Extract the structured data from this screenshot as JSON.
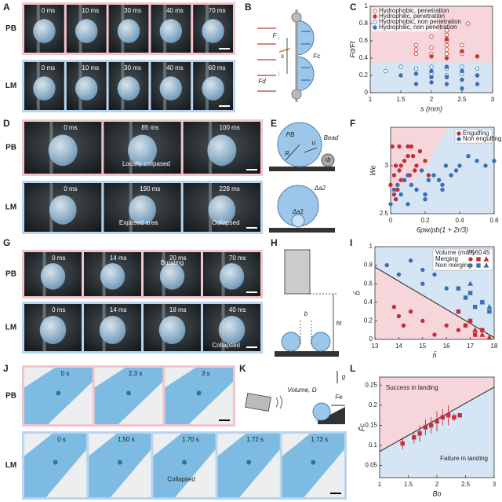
{
  "figure": {
    "panel_labels": [
      "A",
      "B",
      "C",
      "D",
      "E",
      "F",
      "G",
      "H",
      "I",
      "J",
      "K",
      "L"
    ],
    "photo_rows": [
      {
        "name": "PB",
        "frames": [
          "0 ms",
          "10 ms",
          "30  ms",
          "40 ms",
          "70 ms"
        ],
        "notes": []
      },
      {
        "name": "LM",
        "frames": [
          "0 ms",
          "10 ms",
          "30 ms",
          "40 ms",
          "60 ms"
        ],
        "notes": []
      },
      {
        "name": "PB",
        "frames": [
          "0 ms",
          "85 ms",
          "100 ms"
        ],
        "notes": [
          "Locally collpased"
        ]
      },
      {
        "name": "LM",
        "frames": [
          "0 ms",
          "190 ms",
          "228 ms"
        ],
        "notes": [
          "Exposed area",
          "Collapsed"
        ]
      },
      {
        "name": "PB",
        "frames": [
          "0 ms",
          "14 ms",
          "20 ms",
          "70 ms"
        ],
        "notes": [
          "Bursting"
        ]
      },
      {
        "name": "LM",
        "frames": [
          "0 ms",
          "14 ms",
          "18 ms",
          "40 ms"
        ],
        "notes": [
          "Collapsed"
        ]
      },
      {
        "name": "PB",
        "frames": [
          "0 s",
          "2.3 s",
          "3 s"
        ],
        "notes": []
      },
      {
        "name": "LM",
        "frames": [
          "0 s",
          "1.50 s",
          "1.70 s",
          "1.72 s",
          "1.73 s"
        ],
        "notes": [
          "Collapsed"
        ]
      }
    ],
    "diagrams": {
      "B": [
        "F",
        "Fd",
        "Fc",
        "s"
      ],
      "E": [
        "PB",
        "u",
        "R",
        "rb",
        "Bead",
        "Δa2",
        "Δa1"
      ],
      "H": [
        "b",
        "ht"
      ],
      "K": [
        "Volume, Ω",
        "g",
        "Fe"
      ]
    }
  },
  "chart_data": [
    {
      "type": "scatter",
      "x_label": "s (mm)",
      "y_label": "Fd/Ft",
      "xlim": [
        1,
        3
      ],
      "xticks": [
        1,
        1.5,
        2,
        2.5,
        3
      ],
      "ylim": [
        0,
        1
      ],
      "yticks": [
        0,
        0.2,
        0.4,
        0.6,
        0.8,
        1
      ],
      "region_colors": [
        "#f6d6da",
        "#d5e5f4"
      ],
      "series": [
        {
          "name": "Hydrophobic, penetration",
          "color": "#c0392b",
          "filled": false,
          "marker": "circle",
          "x": [
            1.75,
            1.75,
            1.75,
            2,
            2,
            2,
            2,
            2.25,
            2.25,
            2.25,
            2.25,
            2.25,
            2.25,
            2.5,
            2.5,
            2.6
          ],
          "values": [
            0.55,
            0.5,
            0.45,
            0.78,
            0.65,
            0.52,
            0.45,
            0.72,
            0.67,
            0.6,
            0.55,
            0.5,
            0.45,
            0.55,
            0.45,
            0.8
          ]
        },
        {
          "name": "Hydrophilic, penetration",
          "color": "#c0392b",
          "filled": true,
          "marker": "circle",
          "x": [
            2,
            2.25,
            2.25,
            2.5,
            2.75
          ],
          "values": [
            0.42,
            0.62,
            0.4,
            0.48,
            0.42
          ]
        },
        {
          "name": "Hydrophobic, non penetration",
          "color": "#3a6fb5",
          "filled": false,
          "marker": "circle",
          "x": [
            1.25,
            1.5,
            1.75,
            2,
            2,
            2.25,
            2.25,
            2.5,
            2.5,
            2.75,
            2.75
          ],
          "values": [
            0.25,
            0.3,
            0.28,
            0.3,
            0.22,
            0.28,
            0.2,
            0.3,
            0.22,
            0.28,
            0.2
          ]
        },
        {
          "name": "Hydrophilic, non penetration",
          "color": "#3a6fb5",
          "filled": true,
          "marker": "circle",
          "x": [
            1.5,
            1.75,
            1.75,
            2,
            2,
            2,
            2.25,
            2.25,
            2.25,
            2.5,
            2.5,
            2.5,
            2.75,
            2.75
          ],
          "values": [
            0.2,
            0.22,
            0.1,
            0.25,
            0.18,
            0.12,
            0.3,
            0.18,
            0.1,
            0.25,
            0.15,
            0.05,
            0.2,
            0.1
          ]
        }
      ]
    },
    {
      "type": "scatter",
      "x_label": "6ρw/ρb(1 + 2r/3)",
      "y_label": "We",
      "xlim": [
        0,
        0.6
      ],
      "xticks": [
        0,
        0.2,
        0.4,
        0.6
      ],
      "ylim": [
        2.5,
        3.4
      ],
      "yticks": [
        2.5,
        3
      ],
      "region_colors": [
        "#f6d6da",
        "#d5e5f4"
      ],
      "series": [
        {
          "name": "Engulfing",
          "color": "#c62d3a",
          "filled": true,
          "marker": "circle",
          "x": [
            0,
            0.01,
            0.02,
            0.03,
            0.04,
            0.05,
            0.06,
            0.08,
            0.1,
            0.12,
            0.14,
            0.15,
            0.17,
            0.2,
            0.22,
            0.02,
            0.05,
            0.08,
            0.1,
            0.13,
            0.03,
            0.06,
            0.11
          ],
          "values": [
            2.8,
            3.2,
            2.9,
            3,
            2.75,
            3.2,
            2.85,
            3.05,
            3.1,
            3.2,
            2.95,
            3,
            3.15,
            3.05,
            2.9,
            2.7,
            2.95,
            2.85,
            3.2,
            3.1,
            2.65,
            3,
            2.9
          ]
        },
        {
          "name": "Non engulfing",
          "color": "#3a6fb5",
          "filled": true,
          "marker": "circle",
          "x": [
            0,
            0.02,
            0.04,
            0.06,
            0.08,
            0.1,
            0.12,
            0.15,
            0.18,
            0.2,
            0.22,
            0.25,
            0.28,
            0.3,
            0.32,
            0.35,
            0.38,
            0.4,
            0.45,
            0.5,
            0.55,
            0.6,
            0.1,
            0.2,
            0.3
          ],
          "values": [
            2.6,
            2.75,
            2.8,
            2.7,
            2.85,
            2.9,
            2.8,
            2.75,
            2.95,
            2.7,
            2.85,
            2.9,
            2.85,
            2.8,
            3,
            2.9,
            2.95,
            3,
            3.1,
            3.05,
            3,
            3.05,
            2.6,
            2.65,
            2.75
          ]
        }
      ]
    },
    {
      "type": "scatter",
      "x_label": "ĥ",
      "y_label": "b̂",
      "xlim": [
        13,
        18
      ],
      "xticks": [
        13,
        14,
        15,
        16,
        17,
        18
      ],
      "ylim": [
        0,
        1
      ],
      "yticks": [
        0,
        0.2,
        0.4,
        0.6,
        0.8,
        1
      ],
      "region_colors": [
        "#d5e5f4",
        "#f6d6da"
      ],
      "boundary": {
        "x": [
          13,
          18
        ],
        "y": [
          0.78,
          0.02
        ]
      },
      "legend": {
        "title": "Volume (mm³)",
        "columns": [
          "75",
          "60",
          "45"
        ],
        "rows": [
          "Merging",
          "Non merging"
        ]
      },
      "series": [
        {
          "color": "#c62d3a",
          "filled": true,
          "marker": "circle",
          "x": [
            13.8,
            14,
            14.2,
            14.5,
            15,
            15.5,
            16,
            16.5
          ],
          "values": [
            0.35,
            0.25,
            0.15,
            0.3,
            0.2,
            0.05,
            0.15,
            0.1
          ]
        },
        {
          "color": "#c62d3a",
          "filled": true,
          "marker": "square",
          "x": [
            16.5,
            16.8,
            17,
            17.2,
            17.5
          ],
          "values": [
            0.3,
            0.15,
            0.2,
            0.05,
            0.1
          ]
        },
        {
          "color": "#c62d3a",
          "filled": true,
          "marker": "triangle",
          "x": [
            17.2,
            17.5,
            17.8
          ],
          "values": [
            0.1,
            0.05,
            0.02
          ]
        },
        {
          "color": "#3a6fb5",
          "filled": true,
          "marker": "circle",
          "x": [
            13.5,
            14,
            14.5,
            15,
            15,
            15.5,
            16
          ],
          "values": [
            0.8,
            0.7,
            0.85,
            0.6,
            0.75,
            0.7,
            0.55
          ]
        },
        {
          "color": "#3a6fb5",
          "filled": true,
          "marker": "square",
          "x": [
            16.5,
            16.8,
            17,
            17.2,
            17.5,
            17.8
          ],
          "values": [
            0.55,
            0.45,
            0.5,
            0.35,
            0.4,
            0.3
          ]
        },
        {
          "color": "#3a6fb5",
          "filled": true,
          "marker": "triangle",
          "x": [
            17,
            17.5,
            17.8
          ],
          "values": [
            0.6,
            0.4,
            0.35
          ]
        }
      ]
    },
    {
      "type": "scatter",
      "x_label": "Bo",
      "y_label": "F̂c",
      "xlim": [
        1,
        3
      ],
      "xticks": [
        1,
        1.5,
        2,
        2.5,
        3
      ],
      "ylim": [
        0.02,
        0.27
      ],
      "yticks": [
        0.05,
        0.1,
        0.15,
        0.2,
        0.25
      ],
      "region_colors": [
        "#f6d6da",
        "#d5e5f4"
      ],
      "boundary": {
        "x": [
          1,
          3
        ],
        "y": [
          0.085,
          0.245
        ]
      },
      "annotations": [
        "Success in landing",
        "Failure in landing"
      ],
      "series": [
        {
          "color": "#c62d3a",
          "filled": true,
          "marker": "square",
          "x": [
            1.4,
            1.6,
            1.7,
            1.8,
            1.9,
            2,
            2.1,
            2.2,
            2.3,
            2.4
          ],
          "values": [
            0.105,
            0.12,
            0.13,
            0.145,
            0.15,
            0.16,
            0.17,
            0.175,
            0.17,
            0.175
          ],
          "errors": [
            0.015,
            0.015,
            0.02,
            0.02,
            0.02,
            0.025,
            0.02,
            0.025,
            0.01,
            0.005
          ]
        }
      ]
    }
  ]
}
